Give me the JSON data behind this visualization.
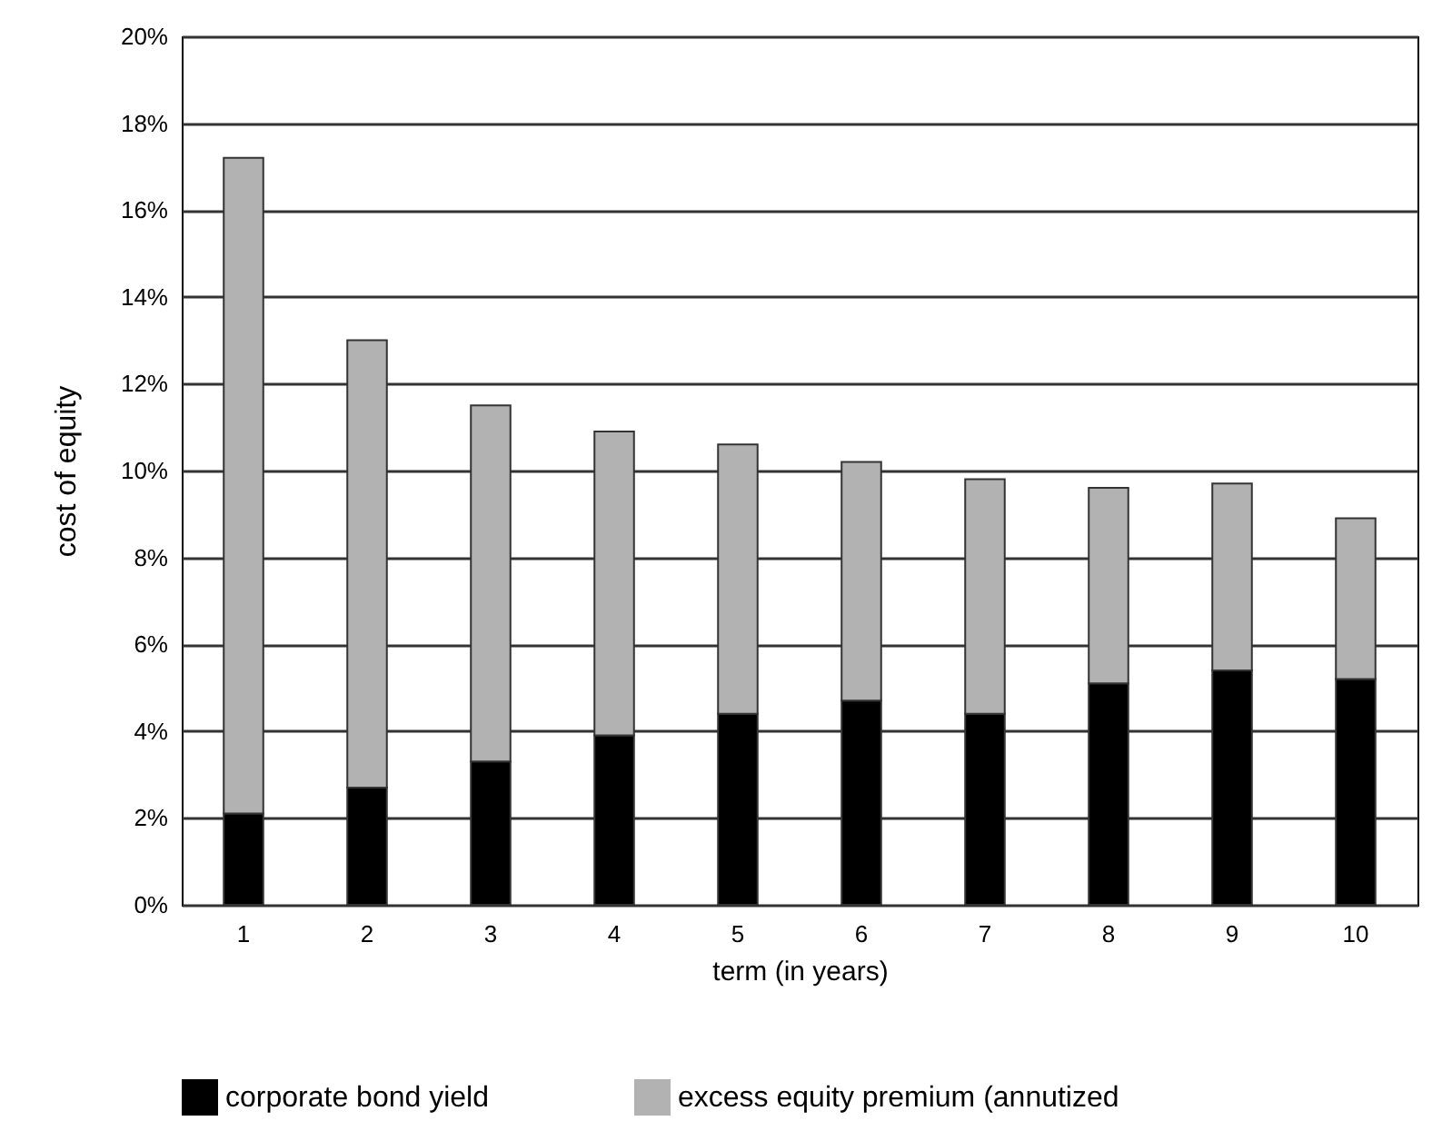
{
  "chart_data": {
    "type": "bar",
    "stacked": true,
    "xlabel": "term (in years)",
    "ylabel": "cost of equity",
    "categories": [
      "1",
      "2",
      "3",
      "4",
      "5",
      "6",
      "7",
      "8",
      "9",
      "10"
    ],
    "series": [
      {
        "name": "corporate bond yield",
        "color": "#000000",
        "values": [
          2.1,
          2.7,
          3.3,
          3.9,
          4.4,
          4.7,
          4.4,
          5.1,
          5.4,
          5.2
        ]
      },
      {
        "name": "excess equity premium (annutized",
        "color": "#b2b2b2",
        "values": [
          15.1,
          10.3,
          8.2,
          7.0,
          6.2,
          5.5,
          5.4,
          4.5,
          4.3,
          3.7
        ]
      }
    ],
    "ylim": [
      0,
      20
    ],
    "yticks": [
      {
        "value": 0,
        "label": "0%"
      },
      {
        "value": 2,
        "label": "2%"
      },
      {
        "value": 4,
        "label": "4%"
      },
      {
        "value": 6,
        "label": "6%"
      },
      {
        "value": 8,
        "label": "8%"
      },
      {
        "value": 10,
        "label": "10%"
      },
      {
        "value": 12,
        "label": "12%"
      },
      {
        "value": 14,
        "label": "14%"
      },
      {
        "value": 16,
        "label": "16%"
      },
      {
        "value": 18,
        "label": "18%"
      },
      {
        "value": 20,
        "label": "20%"
      }
    ],
    "grid": "y",
    "legend": "bottom"
  }
}
